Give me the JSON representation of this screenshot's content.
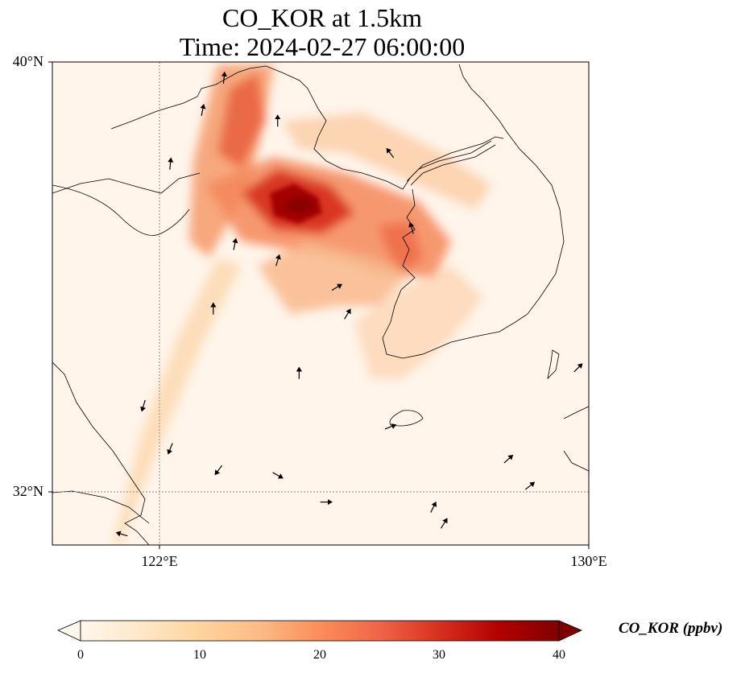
{
  "title": {
    "line1": "CO_KOR at 1.5km",
    "line2": "Time: 2024-02-27 06:00:00"
  },
  "map": {
    "extent": {
      "lon_min": 120.0,
      "lon_max": 130.0,
      "lat_min": 31.0,
      "lat_max": 40.0
    },
    "gridlines": {
      "lon": [
        122
      ],
      "lat": [
        32
      ],
      "style": "dotted"
    },
    "lat_labels": [
      {
        "value": 40,
        "text": "40°N"
      },
      {
        "value": 32,
        "text": "32°N"
      }
    ],
    "lon_labels": [
      {
        "value": 122,
        "text": "122°E"
      },
      {
        "value": 130,
        "text": "130°E"
      }
    ],
    "background_color": "#fff5eb"
  },
  "colorbar": {
    "label": "CO_KOR (ppbv)",
    "min": 0,
    "max": 40,
    "ticks": [
      0,
      10,
      20,
      30,
      40
    ],
    "colormap": "OrRd",
    "extend": "both"
  },
  "chart_data": {
    "type": "heatmap",
    "variable": "CO_KOR (ppbv)",
    "plumes_ppbv": [
      {
        "name": "northern band",
        "path_lon_lat": [
          [
            123.3,
            39.7
          ],
          [
            122.8,
            38.0
          ],
          [
            123.0,
            36.8
          ]
        ],
        "peak": 28
      },
      {
        "name": "core",
        "path_lon_lat": [
          [
            122.0,
            37.5
          ],
          [
            124.5,
            36.8
          ],
          [
            126.8,
            36.2
          ]
        ],
        "peak": 40
      },
      {
        "name": "eastern arm",
        "path_lon_lat": [
          [
            124.0,
            38.2
          ],
          [
            127.0,
            36.8
          ]
        ],
        "peak": 20
      },
      {
        "name": "southern arm",
        "path_lon_lat": [
          [
            124.5,
            35.5
          ],
          [
            126.3,
            34.6
          ],
          [
            127.0,
            35.0
          ]
        ],
        "peak": 18
      },
      {
        "name": "western trail",
        "path_lon_lat": [
          [
            122.5,
            35.5
          ],
          [
            121.3,
            32.0
          ]
        ],
        "peak": 12
      }
    ],
    "wind_vectors": [
      {
        "lon": 123.2,
        "lat": 39.7,
        "u": 0.1,
        "v": 1.0
      },
      {
        "lon": 124.2,
        "lat": 38.9,
        "u": 0.0,
        "v": 1.0
      },
      {
        "lon": 126.3,
        "lat": 38.3,
        "u": -0.6,
        "v": 0.8
      },
      {
        "lon": 122.8,
        "lat": 39.1,
        "u": 0.2,
        "v": 1.0
      },
      {
        "lon": 122.2,
        "lat": 38.1,
        "u": 0.1,
        "v": 1.0
      },
      {
        "lon": 123.4,
        "lat": 36.6,
        "u": 0.2,
        "v": 1.0
      },
      {
        "lon": 124.2,
        "lat": 36.3,
        "u": 0.3,
        "v": 1.0
      },
      {
        "lon": 123.0,
        "lat": 35.4,
        "u": 0.0,
        "v": 1.0
      },
      {
        "lon": 124.6,
        "lat": 34.2,
        "u": 0.0,
        "v": 1.0
      },
      {
        "lon": 125.3,
        "lat": 35.8,
        "u": 1.0,
        "v": 0.6
      },
      {
        "lon": 125.5,
        "lat": 35.3,
        "u": 0.6,
        "v": 1.0
      },
      {
        "lon": 126.7,
        "lat": 36.9,
        "u": -0.3,
        "v": 1.0
      },
      {
        "lon": 121.7,
        "lat": 33.6,
        "u": -0.3,
        "v": -1.0
      },
      {
        "lon": 122.2,
        "lat": 32.8,
        "u": -0.4,
        "v": -1.0
      },
      {
        "lon": 123.1,
        "lat": 32.4,
        "u": -0.6,
        "v": -0.8
      },
      {
        "lon": 124.2,
        "lat": 32.3,
        "u": 0.9,
        "v": -0.5
      },
      {
        "lon": 126.3,
        "lat": 33.2,
        "u": 1.0,
        "v": 0.4
      },
      {
        "lon": 127.1,
        "lat": 31.7,
        "u": 0.5,
        "v": 1.0
      },
      {
        "lon": 128.5,
        "lat": 32.6,
        "u": 1.0,
        "v": 0.9
      },
      {
        "lon": 128.9,
        "lat": 32.1,
        "u": 1.0,
        "v": 0.8
      },
      {
        "lon": 129.8,
        "lat": 34.3,
        "u": 1.0,
        "v": 1.0
      },
      {
        "lon": 127.3,
        "lat": 31.4,
        "u": 0.5,
        "v": 0.8
      },
      {
        "lon": 121.3,
        "lat": 31.2,
        "u": -1.0,
        "v": 0.3
      },
      {
        "lon": 125.1,
        "lat": 31.8,
        "u": 1.0,
        "v": 0.0
      }
    ]
  }
}
